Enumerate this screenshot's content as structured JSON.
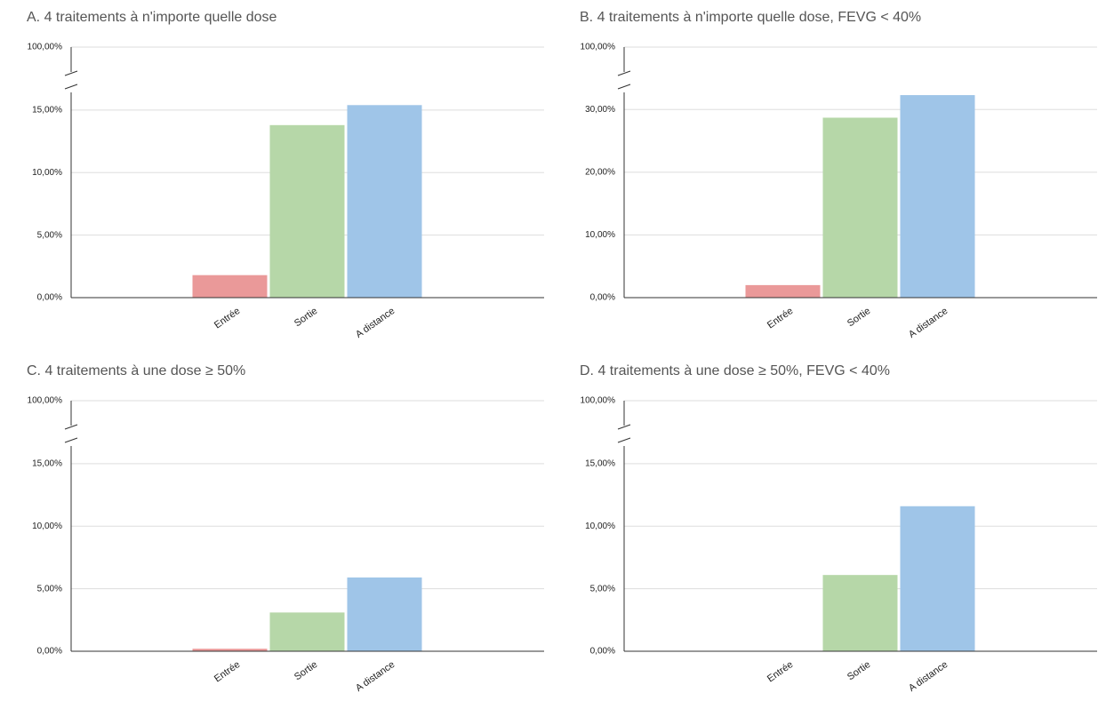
{
  "chart_data": [
    {
      "type": "bar",
      "title": "A. 4 traitements à n'importe quelle dose",
      "categories": [
        "Entrée",
        "Sortie",
        "A distance"
      ],
      "values": [
        1.8,
        13.8,
        15.4
      ],
      "colors": [
        "#ea9999",
        "#b6d7a8",
        "#9fc5e8"
      ],
      "ylim": [
        0,
        100
      ],
      "ybreak": [
        16.7,
        99
      ],
      "yticks": [
        {
          "value": 0,
          "label": "0,00%"
        },
        {
          "value": 5,
          "label": "5,00%"
        },
        {
          "value": 10,
          "label": "10,00%"
        },
        {
          "value": 15,
          "label": "15,00%"
        },
        {
          "value": 100,
          "label": "100,00%"
        }
      ],
      "grid": true
    },
    {
      "type": "bar",
      "title": "B. 4 traitements à n'importe quelle dose, FEVG < 40%",
      "categories": [
        "Entrée",
        "Sortie",
        "A distance"
      ],
      "values": [
        2.0,
        28.7,
        32.3
      ],
      "colors": [
        "#ea9999",
        "#b6d7a8",
        "#9fc5e8"
      ],
      "ylim": [
        0,
        100
      ],
      "ybreak": [
        33.3,
        99
      ],
      "yticks": [
        {
          "value": 0,
          "label": "0,00%"
        },
        {
          "value": 10,
          "label": "10,00%"
        },
        {
          "value": 20,
          "label": "20,00%"
        },
        {
          "value": 30,
          "label": "30,00%"
        },
        {
          "value": 100,
          "label": "100,00%"
        }
      ],
      "grid": true
    },
    {
      "type": "bar",
      "title": "C. 4 traitements à une dose ≥  50%",
      "categories": [
        "Entrée",
        "Sortie",
        "A distance"
      ],
      "values": [
        0.2,
        3.1,
        5.9
      ],
      "colors": [
        "#ea9999",
        "#b6d7a8",
        "#9fc5e8"
      ],
      "ylim": [
        0,
        100
      ],
      "ybreak": [
        16.7,
        99
      ],
      "yticks": [
        {
          "value": 0,
          "label": "0,00%"
        },
        {
          "value": 5,
          "label": "5,00%"
        },
        {
          "value": 10,
          "label": "10,00%"
        },
        {
          "value": 15,
          "label": "15,00%"
        },
        {
          "value": 100,
          "label": "100,00%"
        }
      ],
      "grid": true
    },
    {
      "type": "bar",
      "title": "D. 4 traitements à une dose ≥  50%, FEVG < 40%",
      "categories": [
        "Entrée",
        "Sortie",
        "A distance"
      ],
      "values": [
        0,
        6.1,
        11.6
      ],
      "colors": [
        "#ea9999",
        "#b6d7a8",
        "#9fc5e8"
      ],
      "ylim": [
        0,
        100
      ],
      "ybreak": [
        16.7,
        99
      ],
      "yticks": [
        {
          "value": 0,
          "label": "0,00%"
        },
        {
          "value": 5,
          "label": "5,00%"
        },
        {
          "value": 10,
          "label": "10,00%"
        },
        {
          "value": 15,
          "label": "15,00%"
        },
        {
          "value": 100,
          "label": "100,00%"
        }
      ],
      "grid": true
    }
  ]
}
